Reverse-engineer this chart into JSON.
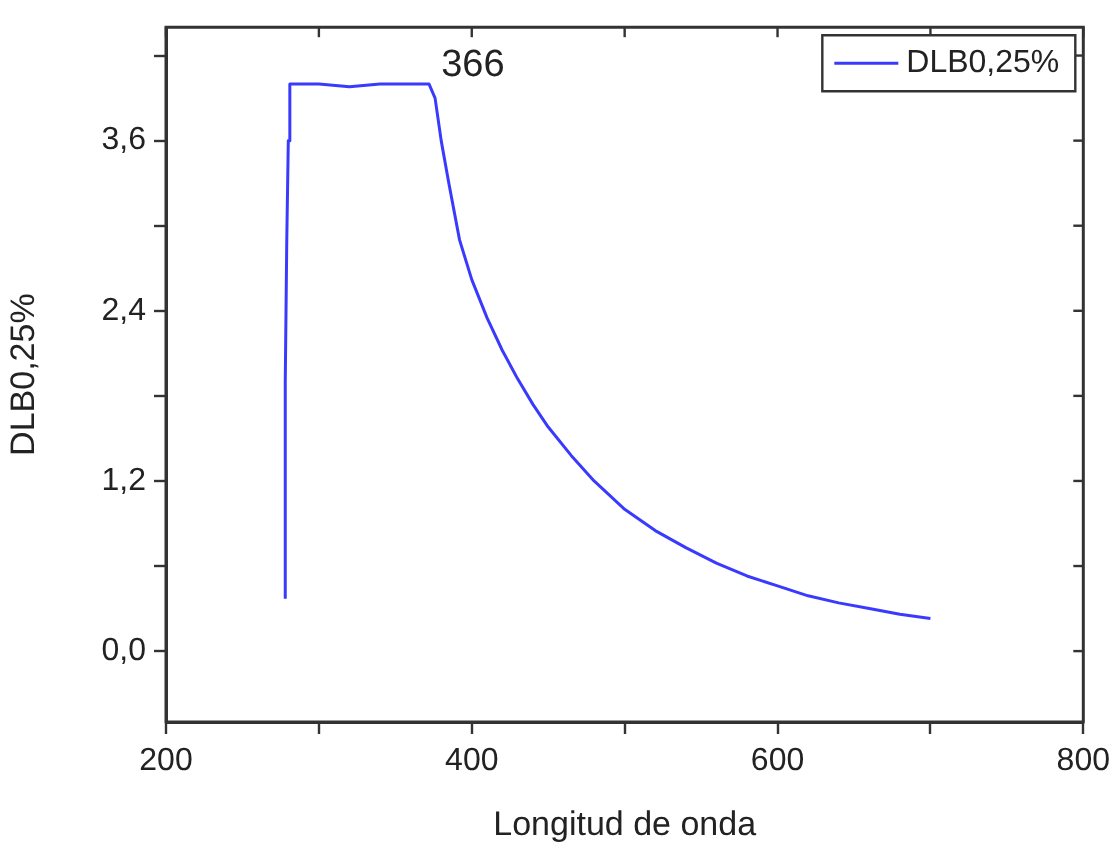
{
  "chart_data": {
    "type": "line",
    "xlabel": "Longitud de onda",
    "ylabel": "DLB0,25%",
    "xlim": [
      200,
      800
    ],
    "ylim": [
      -0.5,
      4.4
    ],
    "xticks": [
      200,
      {
        "value": 300,
        "label": null
      },
      400,
      {
        "value": 500,
        "label": null
      },
      600,
      {
        "value": 700,
        "label": null
      },
      800
    ],
    "yticks": [
      {
        "value": 0,
        "label": "0,0"
      },
      {
        "value": 0.6,
        "label": null
      },
      {
        "value": 1.2,
        "label": "1,2"
      },
      {
        "value": 1.8,
        "label": null
      },
      {
        "value": 2.4,
        "label": "2,4"
      },
      {
        "value": 3.0,
        "label": null
      },
      {
        "value": 3.6,
        "label": "3,6"
      },
      {
        "value": 4.2,
        "label": null
      }
    ],
    "grid": false,
    "legend": "top right",
    "marker": "none",
    "line_style": "solid",
    "annotations": [
      "366"
    ],
    "series": [
      {
        "name": "DLB0,25%",
        "color": "#3a3aff",
        "x": [
          278,
          278,
          279,
          280,
          281,
          300,
          320,
          340,
          360,
          372,
          376,
          380,
          385,
          392,
          400,
          410,
          420,
          430,
          440,
          450,
          465,
          480,
          500,
          520,
          540,
          560,
          580,
          600,
          620,
          640,
          660,
          680,
          700
        ],
        "values": [
          0.37,
          1.9,
          2.9,
          3.6,
          4.0,
          4.0,
          3.98,
          4.0,
          4.0,
          4.0,
          3.9,
          3.6,
          3.3,
          2.9,
          2.62,
          2.35,
          2.12,
          1.92,
          1.74,
          1.58,
          1.38,
          1.2,
          1.0,
          0.85,
          0.73,
          0.62,
          0.53,
          0.46,
          0.39,
          0.34,
          0.3,
          0.26,
          0.23
        ]
      }
    ]
  }
}
